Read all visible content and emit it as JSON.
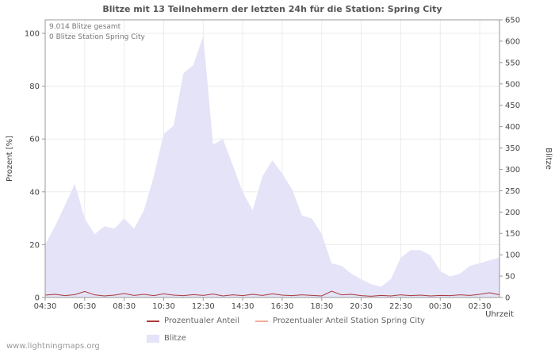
{
  "title": "Blitze mit 13 Teilnehmern der letzten 24h für die Station: Spring City",
  "annotations": {
    "total": "9.014 Blitze gesamt",
    "station": "0 Blitze Station Spring City"
  },
  "axes": {
    "left_label": "Prozent  [%]",
    "right_label": "Blitze",
    "x_label": "Uhrzeit",
    "left_ticks": [
      0,
      20,
      40,
      60,
      80,
      100
    ],
    "right_ticks": [
      0,
      50,
      100,
      150,
      200,
      250,
      300,
      350,
      400,
      450,
      500,
      550,
      600,
      650
    ],
    "x_ticks": [
      "04:30",
      "06:30",
      "08:30",
      "10:30",
      "12:30",
      "14:30",
      "16:30",
      "18:30",
      "20:30",
      "22:30",
      "00:30",
      "02:30"
    ]
  },
  "legend": {
    "percent": "Prozentualer Anteil",
    "station": "Prozentualer Anteil Station Spring City",
    "area": "Blitze"
  },
  "watermark": "www.lightningmaps.org",
  "colors": {
    "area": "#e4e3f8",
    "percent_line": "#aa3939",
    "station_line": "#f4ab9b",
    "grid": "#ececec",
    "axis": "#999999",
    "text": "#444444"
  },
  "chart_data": {
    "type": "area",
    "title": "Blitze mit 13 Teilnehmern der letzten 24h für die Station: Spring City",
    "xlabel": "Uhrzeit",
    "ylabel_left": "Prozent [%]",
    "ylabel_right": "Blitze",
    "left_range": [
      0,
      100
    ],
    "right_range": [
      0,
      650
    ],
    "grid": true,
    "legend_position": "bottom",
    "x": [
      "04:30",
      "05:00",
      "05:30",
      "06:00",
      "06:30",
      "07:00",
      "07:30",
      "08:00",
      "08:30",
      "09:00",
      "09:30",
      "10:00",
      "10:30",
      "11:00",
      "11:30",
      "12:00",
      "12:30",
      "13:00",
      "13:30",
      "14:00",
      "14:30",
      "15:00",
      "15:30",
      "16:00",
      "16:30",
      "17:00",
      "17:30",
      "18:00",
      "18:30",
      "19:00",
      "19:30",
      "20:00",
      "20:30",
      "21:00",
      "21:30",
      "22:00",
      "22:30",
      "23:00",
      "23:30",
      "00:00",
      "00:30",
      "01:00",
      "01:30",
      "02:00",
      "02:30",
      "03:00",
      "03:30"
    ],
    "series": [
      {
        "name": "Blitze",
        "axis": "right",
        "style": "area",
        "values": [
          124,
          167,
          216,
          266,
          185,
          148,
          167,
          161,
          185,
          161,
          204,
          284,
          383,
          402,
          525,
          544,
          612,
          358,
          371,
          309,
          247,
          204,
          284,
          321,
          290,
          253,
          192,
          185,
          148,
          80,
          74,
          56,
          43,
          31,
          25,
          43,
          93,
          111,
          111,
          99,
          62,
          49,
          56,
          74,
          80,
          87,
          93
        ]
      },
      {
        "name": "Prozentualer Anteil",
        "axis": "left",
        "style": "line",
        "values": [
          0.9,
          1.2,
          0.7,
          1.1,
          2.3,
          1.0,
          0.6,
          0.9,
          1.5,
          0.8,
          1.2,
          0.7,
          1.4,
          0.9,
          0.7,
          1.1,
          0.8,
          1.3,
          0.6,
          1.0,
          0.7,
          1.2,
          0.8,
          1.4,
          0.9,
          0.7,
          1.0,
          0.8,
          0.6,
          2.4,
          1.0,
          1.2,
          0.7,
          0.5,
          0.8,
          0.6,
          1.0,
          0.7,
          0.9,
          0.6,
          0.8,
          0.7,
          1.0,
          0.8,
          1.2,
          1.8,
          1.0
        ]
      },
      {
        "name": "Prozentualer Anteil Station Spring City",
        "axis": "left",
        "style": "line",
        "values": [
          0,
          0,
          0,
          0,
          0,
          0,
          0,
          0,
          0,
          0,
          0,
          0,
          0,
          0,
          0,
          0,
          0,
          0,
          0,
          0,
          0,
          0,
          0,
          0,
          0,
          0,
          0,
          0,
          0,
          0,
          0,
          0,
          0,
          0,
          0,
          0,
          0,
          0,
          0,
          0,
          0,
          0,
          0,
          0,
          0,
          0,
          0
        ]
      }
    ]
  }
}
